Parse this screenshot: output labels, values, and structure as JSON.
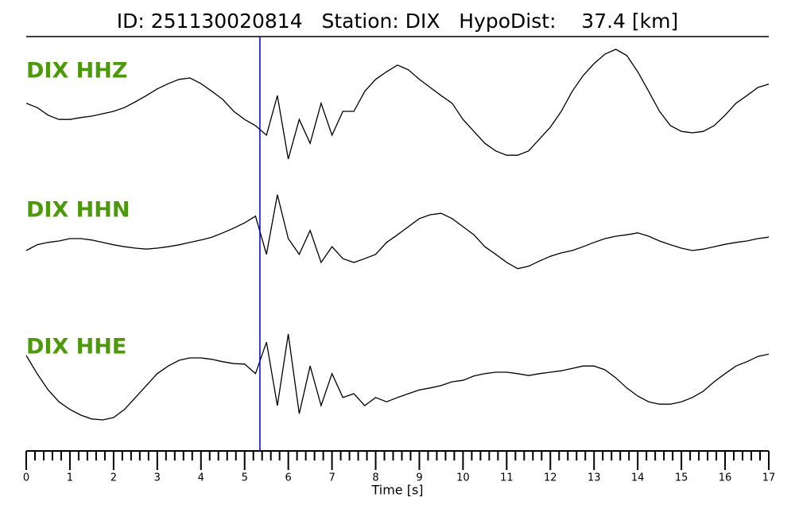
{
  "chart_data": {
    "type": "line",
    "title": "ID: 251130020814   Station: DIX   HypoDist:    37.4 [km]",
    "xlabel": "Time [s]",
    "xlim": [
      0,
      17
    ],
    "xticks": [
      0,
      1,
      2,
      3,
      4,
      5,
      6,
      7,
      8,
      9,
      10,
      11,
      12,
      13,
      14,
      15,
      16,
      17
    ],
    "xminorticks": [
      0.2,
      0.4,
      0.6,
      0.8,
      1.2,
      1.4,
      1.6,
      1.8,
      2.2,
      2.4,
      2.6,
      2.8,
      3.2,
      3.4,
      3.6,
      3.8,
      4.2,
      4.4,
      4.6,
      4.8,
      5.2,
      5.4,
      5.6,
      5.8,
      6.2,
      6.4,
      6.6,
      6.8,
      7.2,
      7.4,
      7.6,
      7.8,
      8.2,
      8.4,
      8.6,
      8.8,
      9.2,
      9.4,
      9.6,
      9.8,
      10.2,
      10.4,
      10.6,
      10.8,
      11.2,
      11.4,
      11.6,
      11.8,
      12.2,
      12.4,
      12.6,
      12.8,
      13.2,
      13.4,
      13.6,
      13.8,
      14.2,
      14.4,
      14.6,
      14.8,
      15.2,
      15.4,
      15.6,
      15.8,
      16.2,
      16.4,
      16.6,
      16.8
    ],
    "pick_time": 5.35,
    "pick_color": "#0000cc",
    "label_color": "#4c9a0a",
    "x": [
      0,
      0.25,
      0.5,
      0.75,
      1,
      1.25,
      1.5,
      1.75,
      2,
      2.25,
      2.5,
      2.75,
      3,
      3.25,
      3.5,
      3.75,
      4,
      4.25,
      4.5,
      4.75,
      5,
      5.25,
      5.5,
      5.75,
      6,
      6.25,
      6.5,
      6.75,
      7,
      7.25,
      7.5,
      7.75,
      8,
      8.25,
      8.5,
      8.75,
      9,
      9.25,
      9.5,
      9.75,
      10,
      10.25,
      10.5,
      10.75,
      11,
      11.25,
      11.5,
      11.75,
      12,
      12.25,
      12.5,
      12.75,
      13,
      13.25,
      13.5,
      13.75,
      14,
      14.25,
      14.5,
      14.75,
      15,
      15.25,
      15.5,
      15.75,
      16,
      16.25,
      16.5,
      16.75,
      17
    ],
    "series": [
      {
        "name": "DIX HHZ",
        "color": "#000000",
        "values": [
          0.17,
          0.08,
          -0.08,
          -0.17,
          -0.17,
          -0.13,
          -0.1,
          -0.05,
          0,
          0.08,
          0.2,
          0.33,
          0.47,
          0.58,
          0.67,
          0.7,
          0.58,
          0.42,
          0.25,
          0,
          -0.17,
          -0.3,
          -0.5,
          0.33,
          -1,
          -0.17,
          -0.67,
          0.17,
          -0.5,
          0,
          0,
          0.42,
          0.67,
          0.83,
          0.97,
          0.87,
          0.67,
          0.5,
          0.33,
          0.17,
          -0.17,
          -0.42,
          -0.67,
          -0.83,
          -0.92,
          -0.92,
          -0.83,
          -0.58,
          -0.33,
          0,
          0.42,
          0.75,
          1,
          1.2,
          1.3,
          1.17,
          0.83,
          0.42,
          0,
          -0.3,
          -0.42,
          -0.45,
          -0.42,
          -0.3,
          -0.08,
          0.17,
          0.33,
          0.5,
          0.57
        ]
      },
      {
        "name": "DIX HHN",
        "color": "#000000",
        "values": [
          -0.25,
          -0.13,
          -0.08,
          -0.05,
          0,
          0,
          -0.03,
          -0.08,
          -0.13,
          -0.17,
          -0.2,
          -0.22,
          -0.2,
          -0.17,
          -0.13,
          -0.08,
          -0.03,
          0.03,
          0.12,
          0.22,
          0.33,
          0.47,
          -0.33,
          0.92,
          0,
          -0.33,
          0.17,
          -0.5,
          -0.17,
          -0.42,
          -0.5,
          -0.42,
          -0.33,
          -0.08,
          0.08,
          0.25,
          0.42,
          0.5,
          0.53,
          0.42,
          0.25,
          0.08,
          -0.17,
          -0.33,
          -0.5,
          -0.63,
          -0.58,
          -0.47,
          -0.37,
          -0.3,
          -0.25,
          -0.17,
          -0.08,
          0,
          0.05,
          0.08,
          0.12,
          0.05,
          -0.05,
          -0.13,
          -0.2,
          -0.25,
          -0.22,
          -0.17,
          -0.12,
          -0.08,
          -0.05,
          0,
          0.03
        ]
      },
      {
        "name": "DIX HHE",
        "color": "#000000",
        "values": [
          0.3,
          -0.08,
          -0.42,
          -0.67,
          -0.83,
          -0.95,
          -1.03,
          -1.05,
          -1,
          -0.83,
          -0.58,
          -0.33,
          -0.08,
          0.08,
          0.2,
          0.25,
          0.25,
          0.22,
          0.17,
          0.13,
          0.12,
          -0.08,
          0.58,
          -0.75,
          0.75,
          -0.92,
          0.08,
          -0.75,
          -0.08,
          -0.58,
          -0.5,
          -0.75,
          -0.58,
          -0.67,
          -0.58,
          -0.5,
          -0.42,
          -0.38,
          -0.33,
          -0.25,
          -0.22,
          -0.13,
          -0.08,
          -0.05,
          -0.05,
          -0.08,
          -0.12,
          -0.08,
          -0.05,
          -0.02,
          0.03,
          0.08,
          0.08,
          0,
          -0.17,
          -0.38,
          -0.55,
          -0.67,
          -0.72,
          -0.72,
          -0.67,
          -0.58,
          -0.45,
          -0.25,
          -0.08,
          0.08,
          0.17,
          0.28,
          0.33
        ]
      }
    ]
  }
}
